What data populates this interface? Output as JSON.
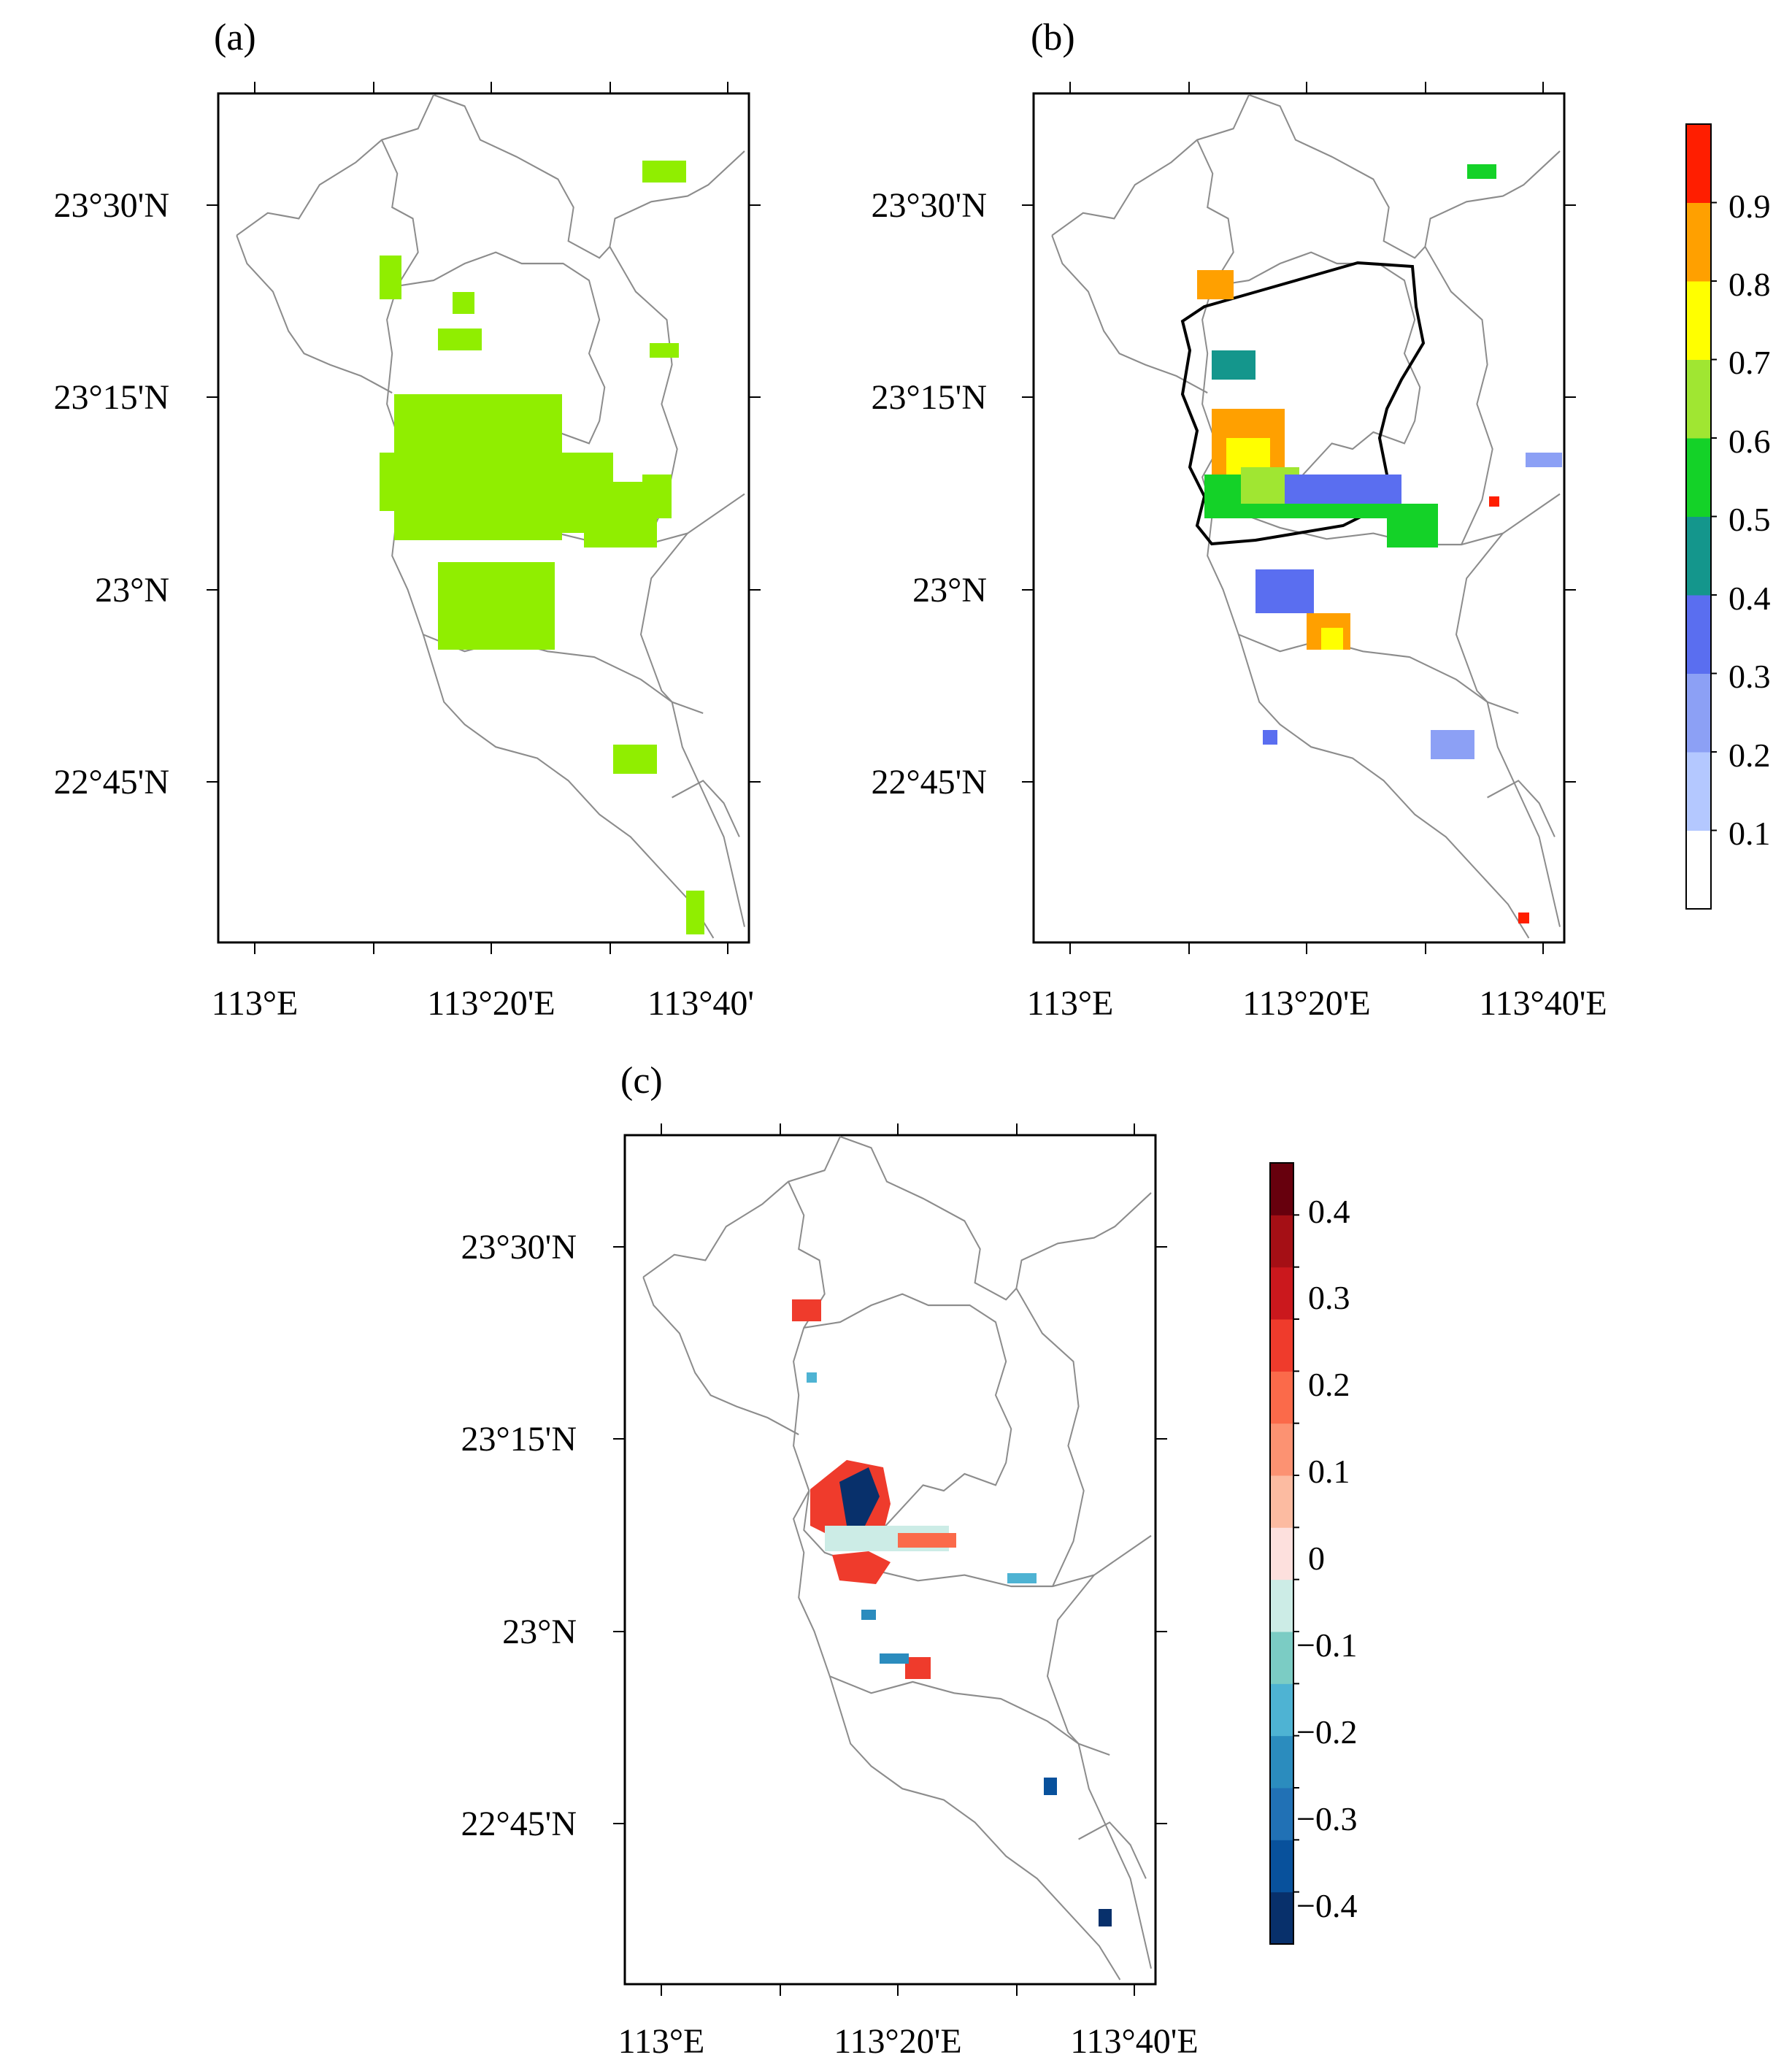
{
  "panels": [
    {
      "id": "a",
      "label": "(a)",
      "lat_labels": [
        "23°30'N",
        "23°15'N",
        "23°N",
        "22°45'N"
      ],
      "lon_labels": [
        "113°E",
        "113°20'E",
        "113°40'"
      ]
    },
    {
      "id": "b",
      "label": "(b)",
      "lat_labels": [
        "23°30'N",
        "23°15'N",
        "23°N",
        "22°45'N"
      ],
      "lon_labels": [
        "113°E",
        "113°20'E",
        "113°40'E"
      ]
    },
    {
      "id": "c",
      "label": "(c)",
      "lat_labels": [
        "23°30'N",
        "23°15'N",
        "23°N",
        "22°45'N"
      ],
      "lon_labels": [
        "113°E",
        "113°20'E",
        "113°40'E"
      ]
    }
  ],
  "colorbar_b": {
    "tick_labels": [
      "0.9",
      "0.8",
      "0.7",
      "0.6",
      "0.5",
      "0.4",
      "0.3",
      "0.2",
      "0.1"
    ],
    "colors": [
      "#ffffff",
      "#b4c8ff",
      "#8ca0f5",
      "#5a6ef0",
      "#14968c",
      "#14d228",
      "#a0e632",
      "#ffff00",
      "#ffa000",
      "#ff1e00"
    ]
  },
  "colorbar_c": {
    "tick_labels": [
      "0.4",
      "0.3",
      "0.2",
      "0.1",
      "0",
      "−0.1",
      "−0.2",
      "−0.3",
      "−0.4"
    ],
    "colors": [
      "#08306b",
      "#08519c",
      "#2171b5",
      "#2b8cbe",
      "#4eb3d3",
      "#7bccc4",
      "#ccece6",
      "#fde0dd",
      "#fcbba1",
      "#fc9272",
      "#fb6a4a",
      "#ef3b2c",
      "#cb181d",
      "#a50f15",
      "#67000d"
    ]
  },
  "fill_colors": {
    "a_green": "#90ee00",
    "border": "#808080"
  }
}
